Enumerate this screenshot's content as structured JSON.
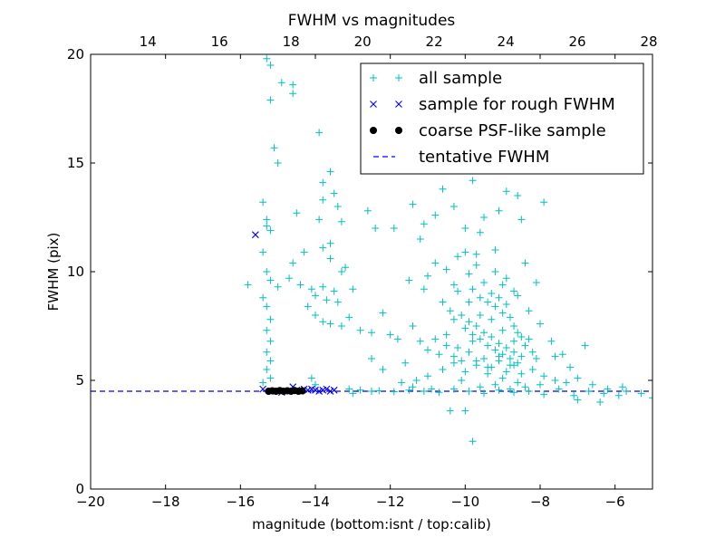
{
  "chart_data": {
    "type": "scatter",
    "title": "FWHM vs magnitudes",
    "xlabel": "magnitude (bottom:isnt / top:calib)",
    "ylabel": "FWHM (pix)",
    "xlim": [
      -20,
      -5
    ],
    "ylim": [
      0,
      20
    ],
    "top_xlim": [
      12.4,
      28.1
    ],
    "bottom_ticks": [
      -20,
      -18,
      -16,
      -14,
      -12,
      -10,
      -8,
      -6
    ],
    "bottom_tick_labels": [
      "−20",
      "−18",
      "−16",
      "−14",
      "−12",
      "−10",
      "−8",
      "−6"
    ],
    "top_ticks": [
      14,
      16,
      18,
      20,
      22,
      24,
      26,
      28
    ],
    "top_tick_labels": [
      "14",
      "16",
      "18",
      "20",
      "22",
      "24",
      "26",
      "28"
    ],
    "y_ticks": [
      0,
      5,
      10,
      15,
      20
    ],
    "y_tick_labels": [
      "0",
      "5",
      "10",
      "15",
      "20"
    ],
    "legend_position": "top-right",
    "legend": [
      {
        "label": "all sample",
        "marker": "plus",
        "color": "#00bfbf"
      },
      {
        "label": "sample for rough FWHM",
        "marker": "x",
        "color": "#0000ff"
      },
      {
        "label": "coarse PSF-like sample",
        "marker": "dot",
        "color": "#000000"
      },
      {
        "label": "tentative FWHM",
        "marker": "dash",
        "color": "#0000ff"
      }
    ],
    "series": [
      {
        "name": "all sample",
        "marker": "plus",
        "color": "#00bfbf",
        "points": [
          [
            -15.3,
            19.8
          ],
          [
            -15.2,
            19.5
          ],
          [
            -14.9,
            18.7
          ],
          [
            -14.6,
            18.6
          ],
          [
            -14.6,
            18.2
          ],
          [
            -15.2,
            17.9
          ],
          [
            -15.1,
            15.7
          ],
          [
            -15.0,
            15.0
          ],
          [
            -13.9,
            16.4
          ],
          [
            -13.6,
            14.6
          ],
          [
            -13.8,
            14.1
          ],
          [
            -13.5,
            13.6
          ],
          [
            -15.4,
            13.2
          ],
          [
            -15.3,
            12.4
          ],
          [
            -15.3,
            12.1
          ],
          [
            -15.2,
            11.9
          ],
          [
            -14.5,
            12.7
          ],
          [
            -13.9,
            12.4
          ],
          [
            -13.6,
            11.3
          ],
          [
            -13.3,
            12.3
          ],
          [
            -12.6,
            12.8
          ],
          [
            -12.4,
            12.0
          ],
          [
            -11.9,
            12.0
          ],
          [
            -11.4,
            13.1
          ],
          [
            -11.1,
            12.2
          ],
          [
            -10.8,
            12.6
          ],
          [
            -11.2,
            11.5
          ],
          [
            -10.6,
            13.8
          ],
          [
            -10.3,
            13.0
          ],
          [
            -10.0,
            15.6
          ],
          [
            -9.8,
            14.2
          ],
          [
            -9.5,
            12.5
          ],
          [
            -9.1,
            12.8
          ],
          [
            -8.9,
            13.7
          ],
          [
            -8.6,
            13.5
          ],
          [
            -7.9,
            13.2
          ],
          [
            -8.5,
            12.4
          ],
          [
            -15.4,
            10.9
          ],
          [
            -15.3,
            10.0
          ],
          [
            -15.2,
            9.6
          ],
          [
            -15.0,
            9.3
          ],
          [
            -15.8,
            9.4
          ],
          [
            -14.6,
            10.4
          ],
          [
            -14.4,
            9.4
          ],
          [
            -14.1,
            9.2
          ],
          [
            -14.0,
            8.9
          ],
          [
            -13.8,
            9.3
          ],
          [
            -13.7,
            8.7
          ],
          [
            -13.5,
            9.1
          ],
          [
            -13.4,
            8.6
          ],
          [
            -13.2,
            10.2
          ],
          [
            -13.0,
            9.2
          ],
          [
            -14.3,
            10.9
          ],
          [
            -13.8,
            11.1
          ],
          [
            -13.6,
            10.6
          ],
          [
            -13.3,
            10.0
          ],
          [
            -15.4,
            8.8
          ],
          [
            -15.3,
            8.4
          ],
          [
            -15.2,
            7.8
          ],
          [
            -15.3,
            7.3
          ],
          [
            -15.2,
            6.8
          ],
          [
            -15.3,
            6.3
          ],
          [
            -15.2,
            5.9
          ],
          [
            -15.3,
            5.5
          ],
          [
            -15.2,
            5.1
          ],
          [
            -15.4,
            4.9
          ],
          [
            -14.2,
            8.4
          ],
          [
            -14.0,
            8.0
          ],
          [
            -13.8,
            7.7
          ],
          [
            -13.6,
            7.6
          ],
          [
            -13.3,
            7.5
          ],
          [
            -12.8,
            7.3
          ],
          [
            -12.5,
            7.2
          ],
          [
            -12.0,
            7.1
          ],
          [
            -11.4,
            7.5
          ],
          [
            -12.2,
            8.1
          ],
          [
            -14.1,
            5.1
          ],
          [
            -14.0,
            4.8
          ],
          [
            -12.2,
            5.5
          ],
          [
            -11.7,
            4.9
          ],
          [
            -11.3,
            5.0
          ],
          [
            -11.0,
            5.2
          ],
          [
            -10.6,
            5.5
          ],
          [
            -10.3,
            5.8
          ],
          [
            -10.0,
            5.4
          ],
          [
            -9.7,
            5.9
          ],
          [
            -9.4,
            5.6
          ],
          [
            -9.1,
            6.1
          ],
          [
            -8.8,
            5.7
          ],
          [
            -8.5,
            5.3
          ],
          [
            -8.2,
            5.5
          ],
          [
            -7.9,
            5.2
          ],
          [
            -7.6,
            5.0
          ],
          [
            -7.3,
            4.9
          ],
          [
            -7.0,
            5.1
          ],
          [
            -6.6,
            4.8
          ],
          [
            -6.2,
            4.6
          ],
          [
            -5.8,
            4.7
          ],
          [
            -5.3,
            4.4
          ],
          [
            -5.0,
            4.2
          ],
          [
            -5.9,
            4.3
          ],
          [
            -6.4,
            4.0
          ],
          [
            -7.0,
            4.1
          ],
          [
            -7.6,
            6.1
          ],
          [
            -6.8,
            6.6
          ],
          [
            -7.2,
            5.6
          ],
          [
            -10.4,
            3.6
          ],
          [
            -10.0,
            3.6
          ],
          [
            -9.8,
            2.2
          ],
          [
            -11.0,
            9.8
          ],
          [
            -10.8,
            10.4
          ],
          [
            -10.5,
            10.1
          ],
          [
            -10.3,
            9.4
          ],
          [
            -10.2,
            10.7
          ],
          [
            -10.0,
            10.9
          ],
          [
            -9.9,
            9.9
          ],
          [
            -9.8,
            9.2
          ],
          [
            -9.7,
            10.3
          ],
          [
            -9.6,
            8.8
          ],
          [
            -9.5,
            9.5
          ],
          [
            -9.4,
            8.6
          ],
          [
            -9.3,
            9.0
          ],
          [
            -9.2,
            8.4
          ],
          [
            -9.1,
            8.8
          ],
          [
            -9.0,
            8.1
          ],
          [
            -8.9,
            8.5
          ],
          [
            -8.8,
            7.9
          ],
          [
            -8.7,
            7.5
          ],
          [
            -8.6,
            7.2
          ],
          [
            -8.5,
            7.0
          ],
          [
            -8.4,
            6.6
          ],
          [
            -8.3,
            6.9
          ],
          [
            -8.2,
            6.3
          ],
          [
            -8.1,
            6.0
          ],
          [
            -10.6,
            8.6
          ],
          [
            -10.4,
            8.2
          ],
          [
            -10.3,
            7.8
          ],
          [
            -10.1,
            8.0
          ],
          [
            -10.0,
            7.4
          ],
          [
            -9.9,
            7.7
          ],
          [
            -9.8,
            7.1
          ],
          [
            -9.7,
            7.5
          ],
          [
            -9.6,
            6.9
          ],
          [
            -9.5,
            7.2
          ],
          [
            -9.4,
            6.6
          ],
          [
            -9.3,
            7.0
          ],
          [
            -9.2,
            6.4
          ],
          [
            -9.1,
            6.7
          ],
          [
            -9.0,
            6.2
          ],
          [
            -8.9,
            6.5
          ],
          [
            -8.8,
            6.0
          ],
          [
            -8.7,
            6.3
          ],
          [
            -8.6,
            5.8
          ],
          [
            -8.5,
            6.1
          ],
          [
            -11.2,
            6.8
          ],
          [
            -11.0,
            6.4
          ],
          [
            -10.8,
            6.9
          ],
          [
            -10.7,
            6.2
          ],
          [
            -10.5,
            6.6
          ],
          [
            -10.3,
            6.1
          ],
          [
            -10.1,
            5.9
          ],
          [
            -9.9,
            6.3
          ],
          [
            -9.7,
            5.7
          ],
          [
            -9.5,
            6.0
          ],
          [
            -9.3,
            5.6
          ],
          [
            -9.1,
            5.9
          ],
          [
            -8.9,
            5.4
          ],
          [
            -8.7,
            5.7
          ],
          [
            -10.2,
            9.1
          ],
          [
            -9.9,
            8.6
          ],
          [
            -9.6,
            8.0
          ],
          [
            -9.3,
            7.8
          ],
          [
            -9.0,
            7.3
          ],
          [
            -8.7,
            6.8
          ],
          [
            -10.5,
            7.1
          ],
          [
            -10.2,
            6.5
          ],
          [
            -9.8,
            6.8
          ],
          [
            -9.4,
            5.3
          ],
          [
            -9.0,
            5.1
          ],
          [
            -8.6,
            4.9
          ],
          [
            -11.8,
            6.9
          ],
          [
            -12.5,
            6.0
          ],
          [
            -11.6,
            5.8
          ],
          [
            -11.5,
            9.6
          ],
          [
            -11.1,
            9.2
          ],
          [
            -9.2,
            11.0
          ],
          [
            -8.9,
            9.7
          ],
          [
            -8.6,
            8.9
          ],
          [
            -8.3,
            8.2
          ],
          [
            -8.0,
            7.6
          ],
          [
            -7.7,
            6.8
          ],
          [
            -7.4,
            6.2
          ],
          [
            -10.1,
            5.0
          ],
          [
            -9.6,
            4.7
          ],
          [
            -9.2,
            4.8
          ],
          [
            -8.8,
            4.6
          ],
          [
            -8.4,
            4.7
          ],
          [
            -8.0,
            4.8
          ],
          [
            -11.4,
            4.7
          ],
          [
            -10.9,
            4.6
          ],
          [
            -12.5,
            4.5
          ],
          [
            -13.1,
            4.6
          ],
          [
            -13.0,
            4.4
          ],
          [
            -12.8,
            4.55
          ],
          [
            -12.3,
            4.52
          ],
          [
            -11.9,
            4.48
          ],
          [
            -11.5,
            4.55
          ],
          [
            -11.1,
            4.5
          ],
          [
            -10.7,
            4.45
          ],
          [
            -10.3,
            4.6
          ],
          [
            -9.9,
            4.5
          ],
          [
            -9.5,
            4.4
          ],
          [
            -9.1,
            4.55
          ],
          [
            -8.7,
            4.45
          ],
          [
            -8.3,
            4.5
          ],
          [
            -7.9,
            4.35
          ],
          [
            -7.5,
            4.6
          ],
          [
            -7.1,
            4.3
          ],
          [
            -6.7,
            4.5
          ],
          [
            -6.3,
            4.4
          ],
          [
            -5.7,
            4.5
          ],
          [
            -10.0,
            12.0
          ],
          [
            -9.6,
            11.8
          ],
          [
            -9.7,
            10.8
          ],
          [
            -9.2,
            10.0
          ],
          [
            -9.0,
            9.4
          ],
          [
            -8.7,
            9.1
          ],
          [
            -8.4,
            10.4
          ],
          [
            -8.1,
            9.5
          ],
          [
            -13.8,
            13.3
          ],
          [
            -13.4,
            13.0
          ],
          [
            -14.7,
            9.7
          ],
          [
            -13.1,
            7.9
          ]
        ]
      },
      {
        "name": "sample for rough FWHM",
        "marker": "x",
        "color": "#0000ff",
        "points": [
          [
            -15.6,
            11.7
          ],
          [
            -15.4,
            4.6
          ],
          [
            -14.6,
            4.7
          ],
          [
            -14.5,
            4.55
          ],
          [
            -14.3,
            4.6
          ],
          [
            -14.2,
            4.55
          ],
          [
            -14.1,
            4.6
          ],
          [
            -14.0,
            4.55
          ],
          [
            -13.9,
            4.5
          ],
          [
            -13.8,
            4.55
          ],
          [
            -13.7,
            4.6
          ],
          [
            -13.6,
            4.5
          ],
          [
            -13.5,
            4.55
          ],
          [
            -15.2,
            4.5
          ],
          [
            -14.9,
            4.45
          ],
          [
            -14.4,
            4.5
          ]
        ]
      },
      {
        "name": "coarse PSF-like sample",
        "marker": "dot",
        "color": "#000000",
        "points": [
          [
            -15.25,
            4.5
          ],
          [
            -15.15,
            4.52
          ],
          [
            -15.05,
            4.5
          ],
          [
            -14.95,
            4.53
          ],
          [
            -14.85,
            4.5
          ],
          [
            -14.75,
            4.52
          ],
          [
            -14.65,
            4.5
          ],
          [
            -14.55,
            4.53
          ],
          [
            -14.45,
            4.5
          ],
          [
            -14.35,
            4.52
          ]
        ]
      }
    ],
    "reference_line": {
      "name": "tentative FWHM",
      "y": 4.5,
      "style": "dashed",
      "color": "#0000ff"
    }
  }
}
